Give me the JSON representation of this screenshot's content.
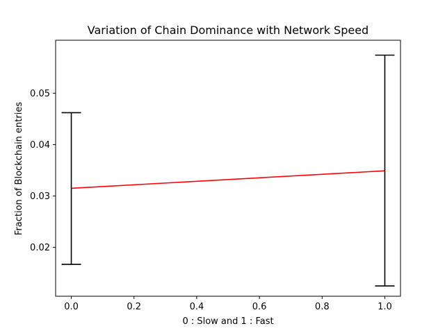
{
  "chart_data": {
    "type": "line",
    "title": "Variation of Chain Dominance with Network Speed",
    "xlabel": "0 : Slow and 1 : Fast",
    "ylabel": "Fraction of Blockchain entries",
    "xlim": [
      -0.05,
      1.05
    ],
    "ylim": [
      0.0105,
      0.0603
    ],
    "x_ticks": [
      0.0,
      0.2,
      0.4,
      0.6,
      0.8,
      1.0
    ],
    "x_tick_labels": [
      "0.0",
      "0.2",
      "0.4",
      "0.6",
      "0.8",
      "1.0"
    ],
    "y_ticks": [
      0.02,
      0.03,
      0.04,
      0.05
    ],
    "y_tick_labels": [
      "0.02",
      "0.03",
      "0.04",
      "0.05"
    ],
    "grid": false,
    "series": [
      {
        "x": [
          0,
          1
        ],
        "values": [
          0.0315,
          0.0349
        ],
        "color": "#ff0000",
        "error_bars": [
          {
            "x": 0,
            "lower": 0.0167,
            "upper": 0.0462
          },
          {
            "x": 1,
            "lower": 0.0125,
            "upper": 0.0574
          }
        ],
        "error_bar_color": "#000000"
      }
    ]
  }
}
